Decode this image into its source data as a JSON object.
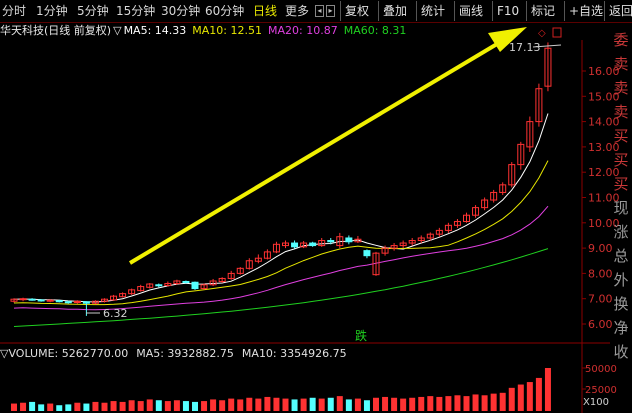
{
  "toolbar": {
    "periods": [
      "分时",
      "1分钟",
      "5分钟",
      "15分钟",
      "30分钟",
      "60分钟",
      "日线",
      "更多"
    ],
    "active_period": "日线",
    "buttons": [
      "复权",
      "叠加",
      "统计",
      "画线",
      "F10",
      "标记",
      "+自选",
      "返回"
    ]
  },
  "header": {
    "stock_label": "华天科技(日线 前复权)",
    "dropdown_glyph": "▽",
    "ma5": "MA5: 14.33",
    "ma10": "MA10: 12.51",
    "ma20": "MA20: 10.87",
    "ma60": "MA60: 8.31"
  },
  "volume_header": {
    "label": "▽VOLUME: 5262770.00",
    "ma5": "MA5: 3932882.75",
    "ma10": "MA10: 3354926.75"
  },
  "price_chart": {
    "y_ticks": [
      "16.00",
      "15.00",
      "14.00",
      "13.00",
      "12.00",
      "11.00",
      "10.00",
      "9.00",
      "8.00",
      "7.00",
      "6.00"
    ],
    "high_label": "17.13",
    "low_label": "6.32",
    "fall_marker": "跌"
  },
  "volume_chart": {
    "y_ticks": [
      "50000",
      "25000"
    ],
    "unit_label": "X100"
  },
  "side_tabs": [
    "委",
    "卖",
    "卖",
    "卖",
    "买",
    "买",
    "买",
    "现",
    "涨",
    "总",
    "外",
    "换",
    "净",
    "收"
  ],
  "colors": {
    "up": "#ff3232",
    "down": "#54ffff",
    "ma5": "#ffffff",
    "ma10": "#e6e600",
    "ma20": "#e040e0",
    "ma60": "#20d020",
    "arrow": "#f0f000",
    "axis": "#8b0000"
  },
  "chart_data": {
    "type": "candlestick",
    "candles": [
      [
        6.9,
        6.98,
        6.85,
        7.02
      ],
      [
        6.96,
        7.0,
        6.9,
        7.04
      ],
      [
        6.98,
        6.96,
        6.92,
        7.02
      ],
      [
        6.95,
        6.92,
        6.88,
        6.98
      ],
      [
        6.9,
        6.94,
        6.86,
        6.98
      ],
      [
        6.92,
        6.9,
        6.85,
        6.96
      ],
      [
        6.88,
        6.85,
        6.8,
        6.92
      ],
      [
        6.85,
        6.9,
        6.8,
        6.94
      ],
      [
        6.88,
        6.82,
        6.32,
        6.9
      ],
      [
        6.82,
        6.9,
        6.78,
        6.94
      ],
      [
        6.9,
        6.98,
        6.85,
        7.02
      ],
      [
        6.95,
        7.1,
        6.92,
        7.15
      ],
      [
        7.08,
        7.2,
        7.05,
        7.25
      ],
      [
        7.2,
        7.35,
        7.15,
        7.4
      ],
      [
        7.32,
        7.48,
        7.28,
        7.55
      ],
      [
        7.45,
        7.58,
        7.4,
        7.62
      ],
      [
        7.55,
        7.52,
        7.45,
        7.6
      ],
      [
        7.52,
        7.6,
        7.48,
        7.68
      ],
      [
        7.6,
        7.7,
        7.55,
        7.75
      ],
      [
        7.68,
        7.66,
        7.6,
        7.72
      ],
      [
        7.65,
        7.4,
        7.35,
        7.68
      ],
      [
        7.4,
        7.55,
        7.35,
        7.6
      ],
      [
        7.55,
        7.7,
        7.5,
        7.78
      ],
      [
        7.68,
        7.8,
        7.62,
        7.85
      ],
      [
        7.8,
        8.0,
        7.75,
        8.1
      ],
      [
        8.0,
        8.2,
        7.95,
        8.25
      ],
      [
        8.2,
        8.5,
        8.15,
        8.6
      ],
      [
        8.48,
        8.6,
        8.4,
        8.75
      ],
      [
        8.6,
        8.85,
        8.55,
        8.95
      ],
      [
        8.85,
        9.15,
        8.8,
        9.25
      ],
      [
        9.1,
        9.2,
        9.0,
        9.3
      ],
      [
        9.2,
        9.05,
        8.98,
        9.3
      ],
      [
        9.05,
        9.2,
        9.0,
        9.28
      ],
      [
        9.2,
        9.1,
        9.05,
        9.25
      ],
      [
        9.1,
        9.3,
        9.05,
        9.4
      ],
      [
        9.3,
        9.25,
        9.15,
        9.4
      ],
      [
        9.1,
        9.45,
        9.0,
        9.6
      ],
      [
        9.4,
        9.25,
        9.15,
        9.5
      ],
      [
        9.25,
        9.35,
        9.2,
        9.48
      ],
      [
        8.9,
        8.7,
        8.6,
        8.95
      ],
      [
        7.95,
        8.8,
        7.9,
        8.85
      ],
      [
        8.8,
        9.0,
        8.7,
        9.1
      ],
      [
        9.0,
        9.1,
        8.9,
        9.2
      ],
      [
        9.1,
        9.2,
        9.0,
        9.3
      ],
      [
        9.2,
        9.3,
        9.1,
        9.4
      ],
      [
        9.3,
        9.4,
        9.2,
        9.5
      ],
      [
        9.4,
        9.55,
        9.3,
        9.62
      ],
      [
        9.55,
        9.7,
        9.45,
        9.8
      ],
      [
        9.7,
        9.9,
        9.6,
        10.0
      ],
      [
        9.9,
        10.05,
        9.8,
        10.15
      ],
      [
        10.05,
        10.3,
        10.0,
        10.4
      ],
      [
        10.3,
        10.6,
        10.2,
        10.7
      ],
      [
        10.6,
        10.9,
        10.5,
        11.0
      ],
      [
        10.9,
        11.2,
        10.8,
        11.3
      ],
      [
        11.2,
        11.5,
        11.1,
        11.6
      ],
      [
        11.5,
        12.3,
        11.4,
        12.4
      ],
      [
        12.3,
        13.1,
        12.1,
        13.2
      ],
      [
        13.0,
        14.0,
        12.8,
        14.2
      ],
      [
        14.0,
        15.3,
        13.8,
        15.5
      ],
      [
        15.4,
        16.9,
        15.2,
        17.13
      ]
    ],
    "volume": [
      9,
      10,
      11,
      8,
      9,
      7,
      8,
      10,
      9,
      11,
      10,
      12,
      11,
      13,
      12,
      14,
      13,
      12,
      13,
      12,
      11,
      12,
      14,
      13,
      15,
      14,
      16,
      15,
      17,
      16,
      15,
      14,
      15,
      16,
      15,
      16,
      18,
      14,
      15,
      13,
      16,
      17,
      16,
      15,
      16,
      17,
      18,
      17,
      18,
      19,
      18,
      20,
      19,
      21,
      22,
      28,
      32,
      35,
      40,
      52
    ],
    "volume_unit": "X100",
    "ylim": [
      5.5,
      17.5
    ]
  }
}
